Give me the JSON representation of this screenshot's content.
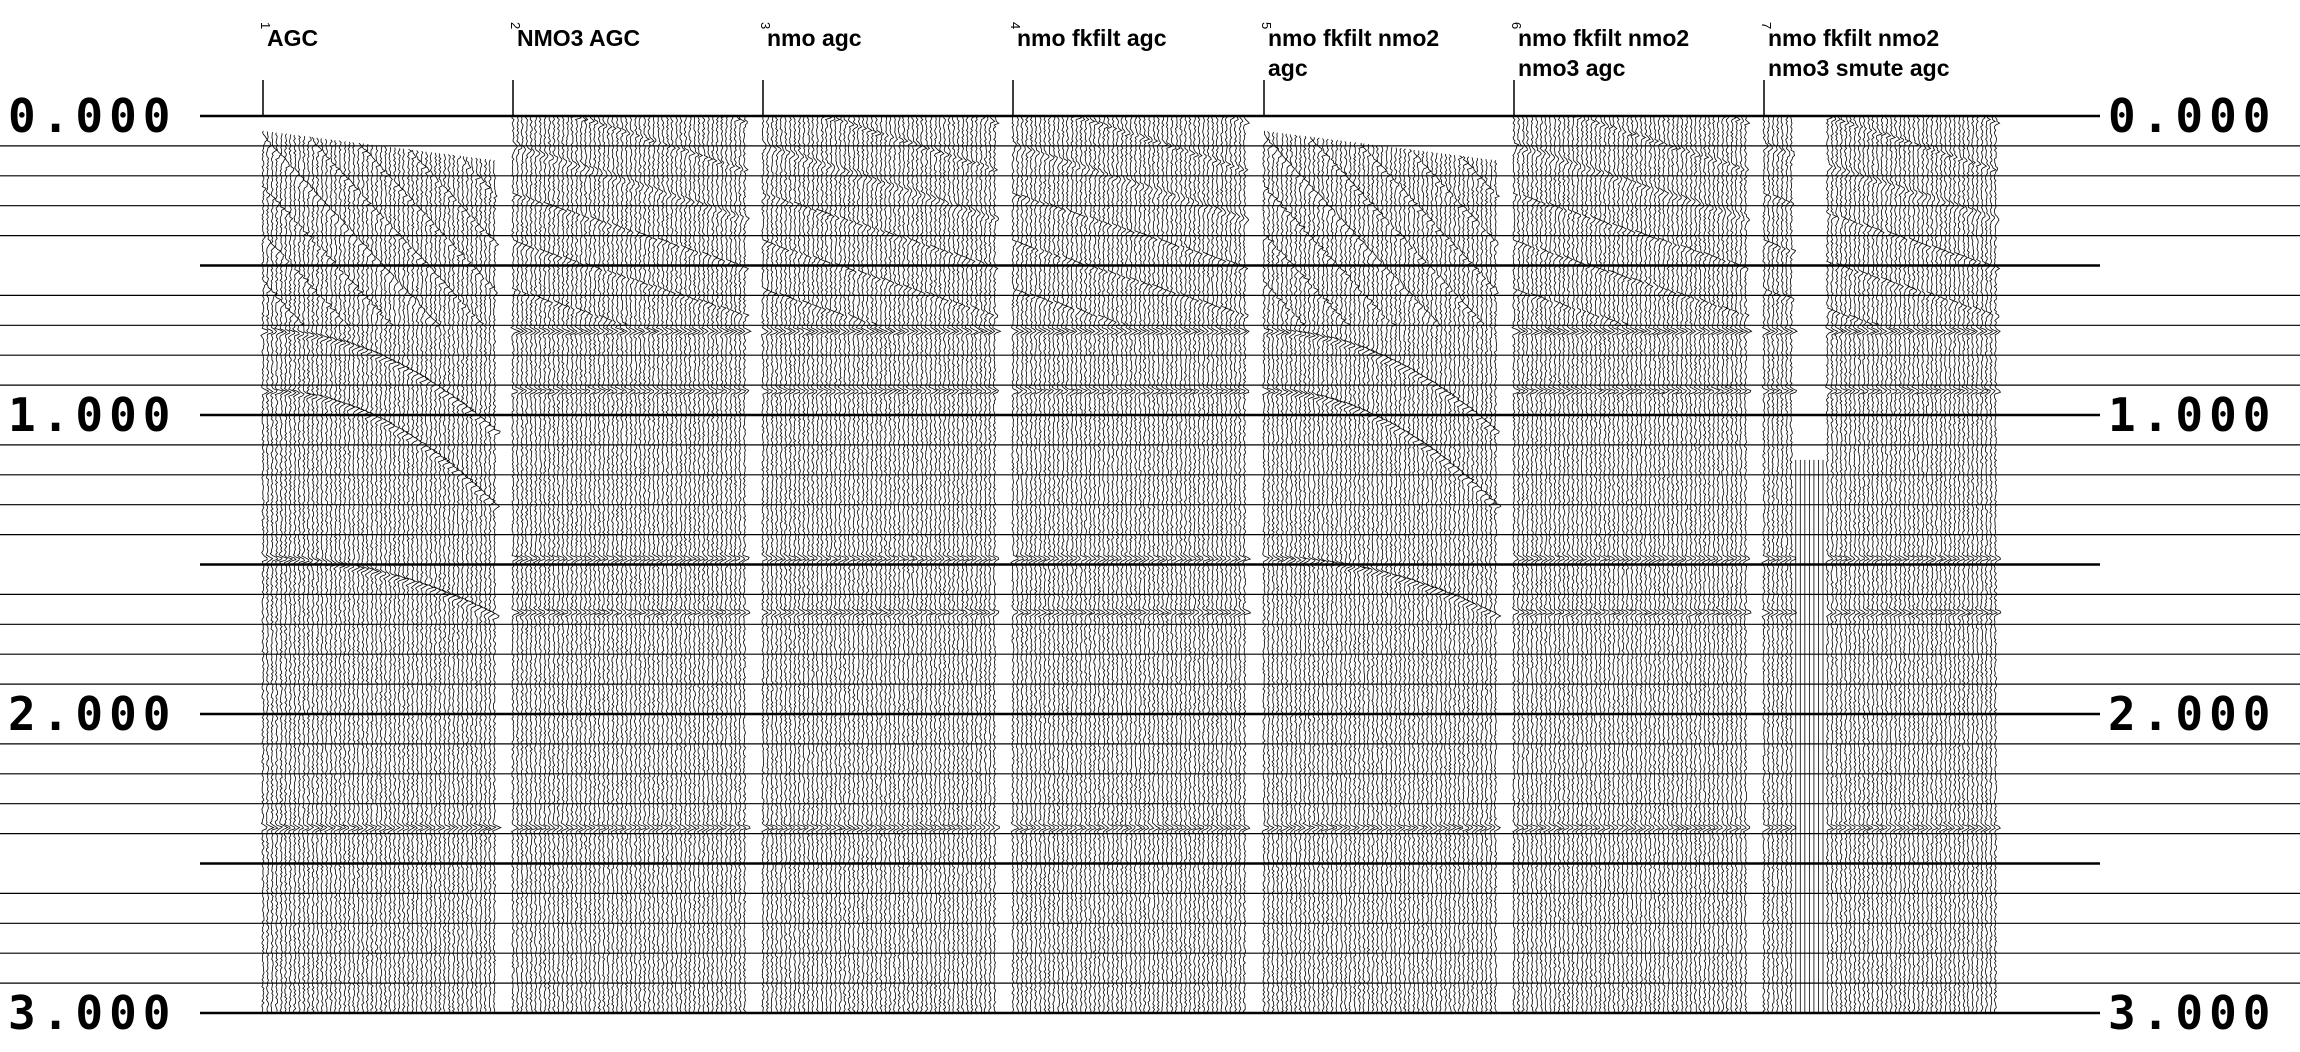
{
  "panels": [
    {
      "number": "1",
      "title_lines": [
        "AGC"
      ],
      "variant": "raw"
    },
    {
      "number": "2",
      "title_lines": [
        "NMO3 AGC"
      ],
      "variant": "nmo"
    },
    {
      "number": "3",
      "title_lines": [
        "nmo agc"
      ],
      "variant": "nmo"
    },
    {
      "number": "4",
      "title_lines": [
        "nmo fkfilt agc"
      ],
      "variant": "nmo"
    },
    {
      "number": "5",
      "title_lines": [
        "nmo fkfilt nmo2",
        "agc"
      ],
      "variant": "raw2"
    },
    {
      "number": "6",
      "title_lines": [
        "nmo fkfilt nmo2",
        "nmo3 agc"
      ],
      "variant": "nmo"
    },
    {
      "number": "7",
      "title_lines": [
        "nmo fkfilt nmo2",
        "nmo3 smute agc"
      ],
      "variant": "smute"
    }
  ],
  "time_axis": {
    "ticks": [
      "0.000",
      "1.000",
      "2.000",
      "3.000"
    ],
    "range": [
      0,
      3
    ],
    "minor_step": 0.1
  },
  "colors": {
    "ink": "#000000",
    "background": "#ffffff"
  }
}
